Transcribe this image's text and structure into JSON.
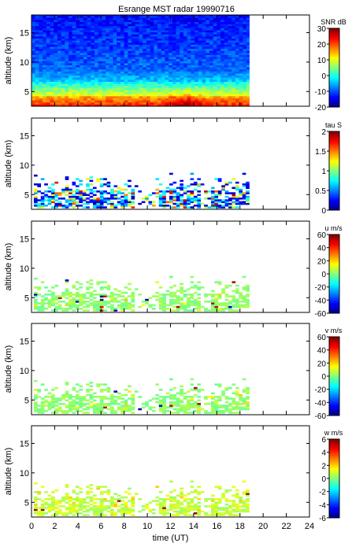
{
  "title": "Esrange MST radar 19990716",
  "chart_data": [
    {
      "type": "heatmap",
      "ylabel": "altitude (km)",
      "xlim": [
        0,
        24
      ],
      "ylim": [
        2.5,
        18
      ],
      "data_extent_hours": [
        0,
        18.8
      ],
      "yticks": [
        5,
        10,
        15
      ],
      "colorbar": {
        "label": "SNR dB",
        "min": -20,
        "max": 30,
        "ticks": [
          -20,
          -10,
          0,
          10,
          20,
          30
        ]
      },
      "pattern": "snr"
    },
    {
      "type": "heatmap",
      "ylabel": "altitude (km)",
      "xlim": [
        0,
        24
      ],
      "ylim": [
        2.5,
        18
      ],
      "data_extent_hours": [
        0,
        18.8
      ],
      "yticks": [
        5,
        10,
        15
      ],
      "colorbar": {
        "label": "tau S",
        "min": 0,
        "max": 2,
        "ticks": [
          "0",
          "0.5",
          "1",
          "1.5",
          "2"
        ]
      },
      "pattern": "tau"
    },
    {
      "type": "heatmap",
      "ylabel": "altitude (km)",
      "xlim": [
        0,
        24
      ],
      "ylim": [
        2.5,
        18
      ],
      "data_extent_hours": [
        0,
        18.8
      ],
      "yticks": [
        5,
        10,
        15
      ],
      "colorbar": {
        "label": "u m/s",
        "min": -60,
        "max": 60,
        "ticks": [
          -60,
          -40,
          -20,
          0,
          20,
          40,
          60
        ]
      },
      "pattern": "u"
    },
    {
      "type": "heatmap",
      "ylabel": "altitude (km)",
      "xlim": [
        0,
        24
      ],
      "ylim": [
        2.5,
        18
      ],
      "data_extent_hours": [
        0,
        18.8
      ],
      "yticks": [
        5,
        10,
        15
      ],
      "colorbar": {
        "label": "v m/s",
        "min": -60,
        "max": 60,
        "ticks": [
          -60,
          -40,
          -20,
          0,
          20,
          40,
          60
        ]
      },
      "pattern": "v"
    },
    {
      "type": "heatmap",
      "ylabel": "altitude (km)",
      "xlabel": "time (UT)",
      "xlim": [
        0,
        24
      ],
      "ylim": [
        2.5,
        18
      ],
      "data_extent_hours": [
        0,
        18.8
      ],
      "yticks": [
        5,
        10,
        15
      ],
      "xticks": [
        0,
        2,
        4,
        6,
        8,
        10,
        12,
        14,
        16,
        18,
        20,
        22,
        24
      ],
      "colorbar": {
        "label": "w m/s",
        "min": -6,
        "max": 6,
        "ticks": [
          -6,
          -4,
          -2,
          0,
          2,
          4,
          6
        ]
      },
      "pattern": "w"
    }
  ]
}
